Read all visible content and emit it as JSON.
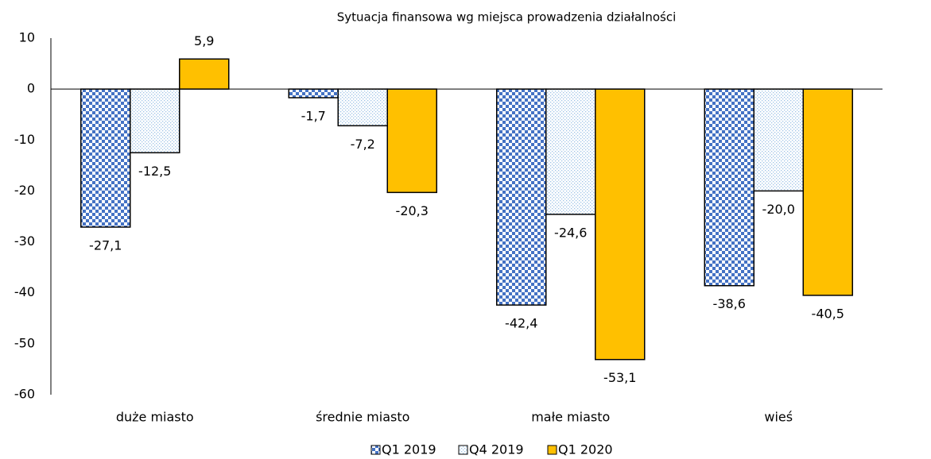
{
  "chart_data": {
    "type": "bar",
    "title": "Sytuacja finansowa wg miejsca prowadzenia działalności",
    "categories": [
      "duże miasto",
      "średnie miasto",
      "małe miasto",
      "wieś"
    ],
    "series": [
      {
        "name": "Q1 2019",
        "color": "#4472c4",
        "fill_pattern": "checker",
        "values": [
          -27.1,
          -1.7,
          -42.4,
          -38.6
        ],
        "value_labels": [
          "-27,1",
          "-1,7",
          "-42,4",
          "-38,6"
        ]
      },
      {
        "name": "Q4 2019",
        "color": "#9dc3e6",
        "fill_pattern": "dots",
        "values": [
          -12.5,
          -7.2,
          -24.6,
          -20.0
        ],
        "value_labels": [
          "-12,5",
          "-7,2",
          "-24,6",
          "-20,0"
        ]
      },
      {
        "name": "Q1 2020",
        "color": "#ffc000",
        "fill_pattern": "solid",
        "values": [
          5.9,
          -20.3,
          -53.1,
          -40.5
        ],
        "value_labels": [
          "5,9",
          "-20,3",
          "-53,1",
          "-40,5"
        ]
      }
    ],
    "ylim": [
      -60,
      10
    ],
    "yticks": [
      -60,
      -50,
      -40,
      -30,
      -20,
      -10,
      0,
      10
    ],
    "grid": false,
    "legend": "bottom"
  }
}
